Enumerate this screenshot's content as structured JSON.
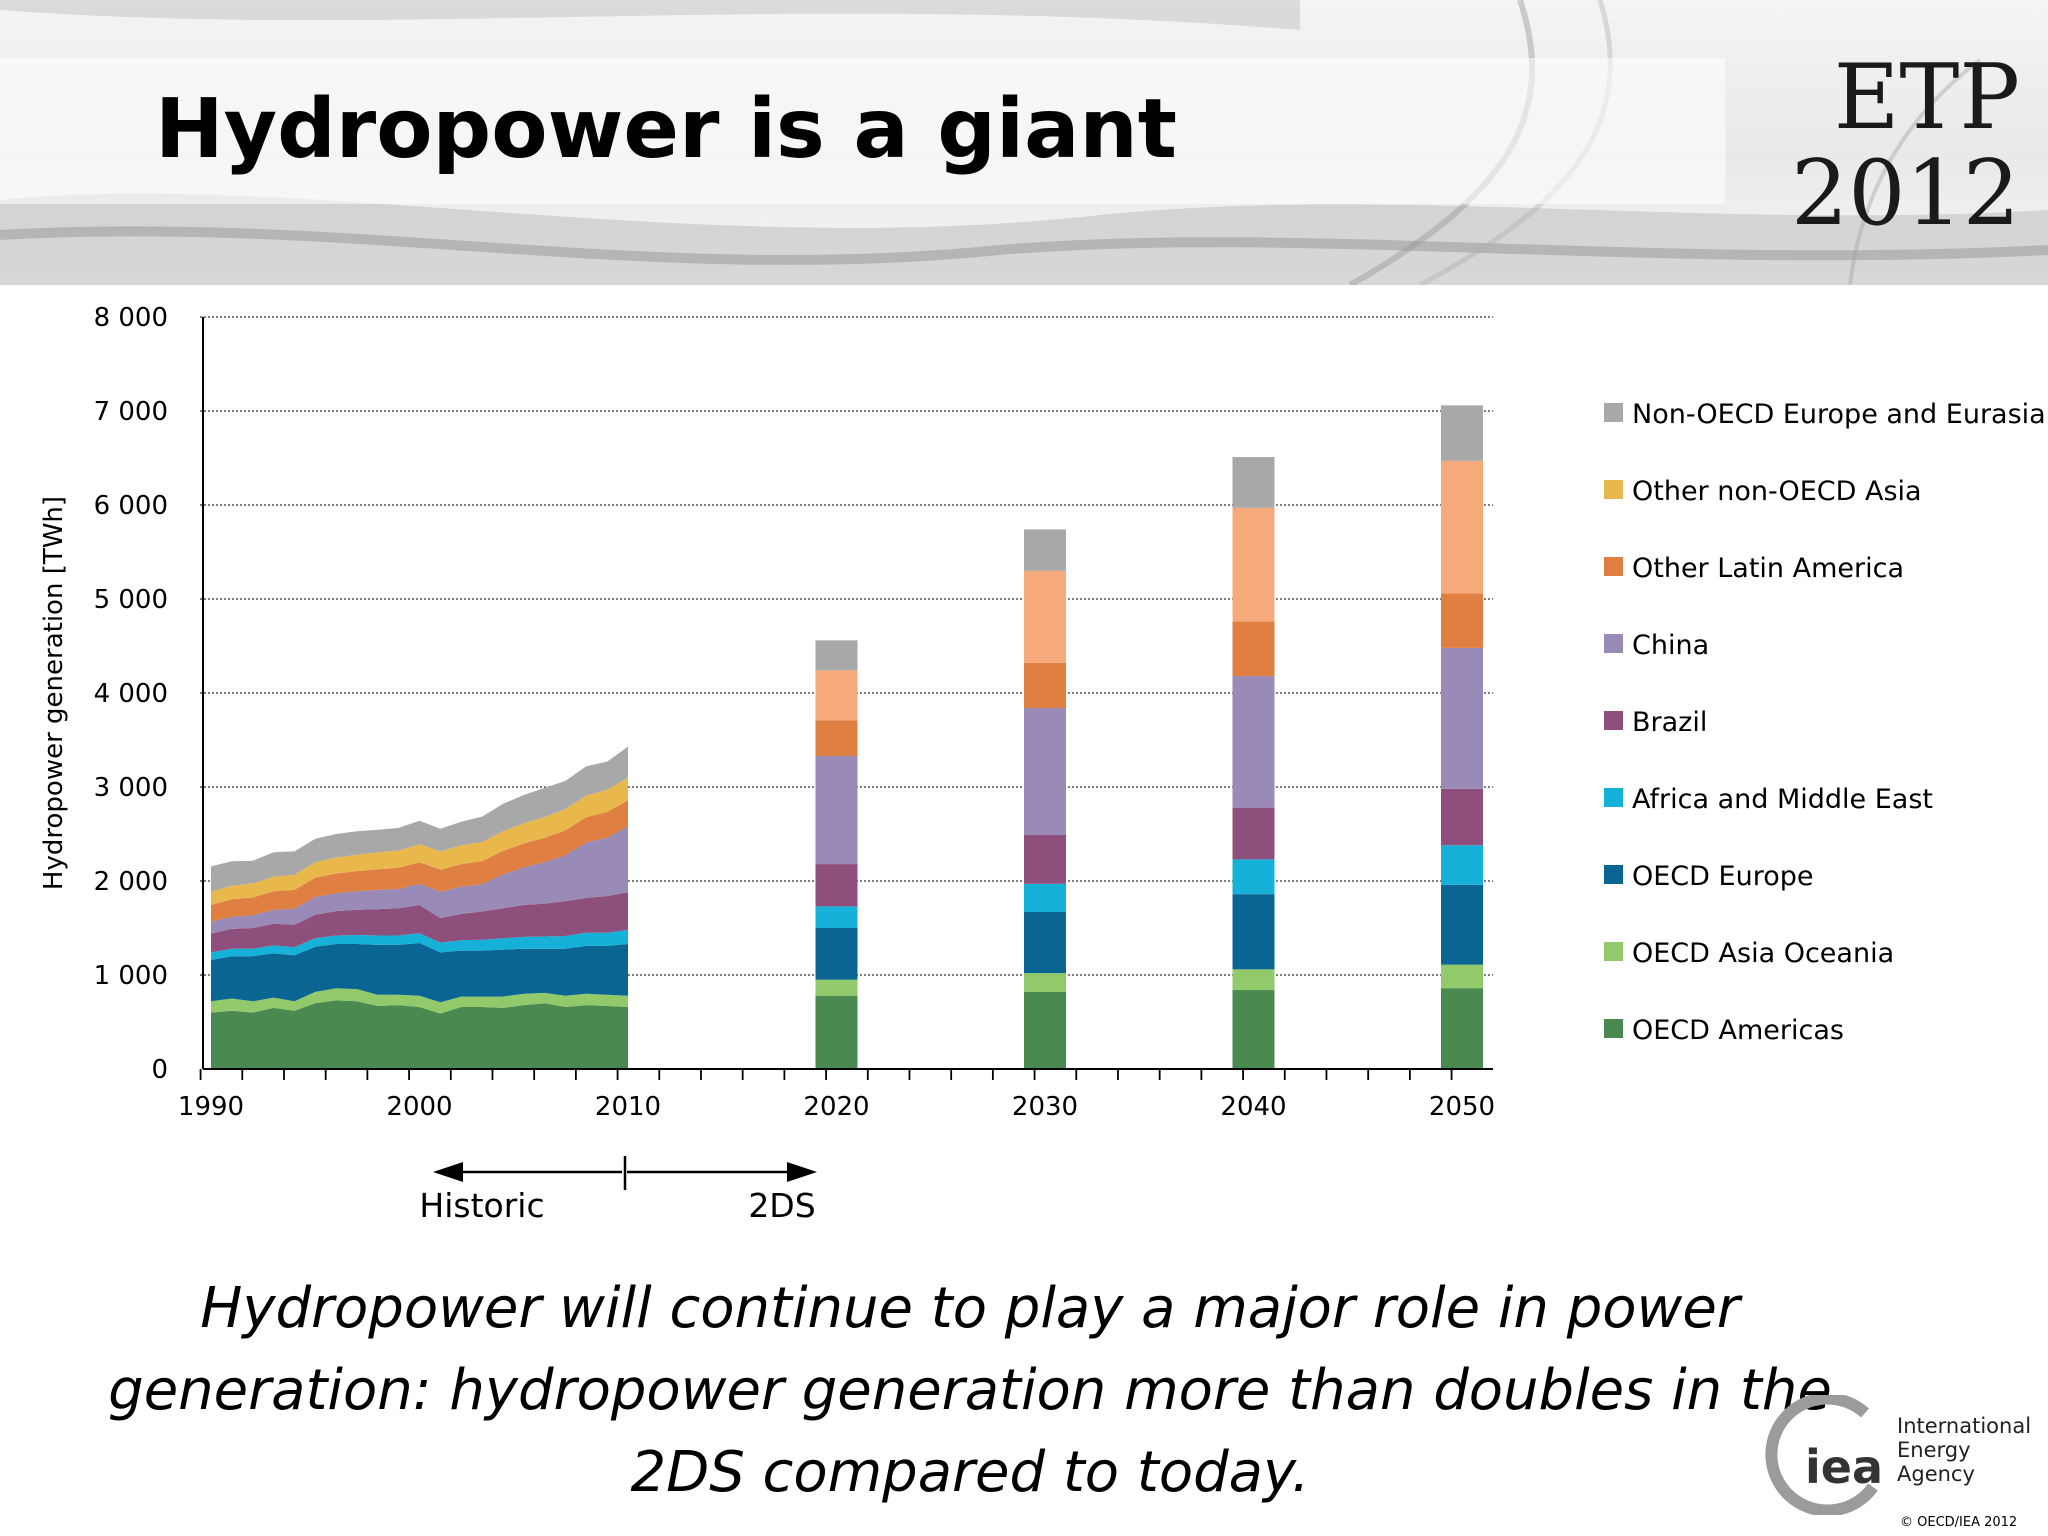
{
  "slide": {
    "title": "Hydropower is a giant",
    "logo_line1": "ETP",
    "logo_line2": "2012",
    "caption": "Hydropower will continue to play a major role in power generation: hydropower generation more than doubles in the 2DS compared to today.",
    "iea_logo_lettering": "iea",
    "iea_org_line1": "International",
    "iea_org_line2": "Energy Agency",
    "footer": "© OECD/IEA 2012"
  },
  "chart_data": {
    "type": "area",
    "stacked": true,
    "ylabel": "Hydropower generation [TWh]",
    "ylim": [
      0,
      8000
    ],
    "y_ticks": [
      0,
      1000,
      2000,
      3000,
      4000,
      5000,
      6000,
      7000,
      8000
    ],
    "y_tick_labels": [
      "0",
      "1 000",
      "2 000",
      "3 000",
      "4 000",
      "5 000",
      "6 000",
      "7 000",
      "8 000"
    ],
    "xlim": [
      1990,
      2051
    ],
    "x_ticks": [
      1990,
      2000,
      2010,
      2020,
      2030,
      2040,
      2050
    ],
    "x_tick_labels": [
      "1990",
      "2000",
      "2010",
      "2020",
      "2030",
      "2040",
      "2050"
    ],
    "grid": "horizontal-dotted",
    "legend_position": "right",
    "legend_order": [
      "Non-OECD Europe and Eurasia",
      "Other non-OECD Asia",
      "Other Latin America",
      "China",
      "Brazil",
      "Africa and Middle East",
      "OECD Europe",
      "OECD Asia Oceania",
      "OECD Americas"
    ],
    "annotations": {
      "historic": "Historic",
      "scenario": "2DS",
      "divider_year": 2010
    },
    "historic_years": [
      1990,
      1991,
      1992,
      1993,
      1994,
      1995,
      1996,
      1997,
      1998,
      1999,
      2000,
      2001,
      2002,
      2003,
      2004,
      2005,
      2006,
      2007,
      2008,
      2009,
      2010
    ],
    "projection_years": [
      2020,
      2030,
      2040,
      2050
    ],
    "series": [
      {
        "name": "OECD Americas",
        "color": "#4a8a50",
        "historic": [
          600,
          620,
          600,
          650,
          620,
          700,
          730,
          720,
          670,
          680,
          660,
          590,
          660,
          660,
          650,
          680,
          700,
          660,
          680,
          670,
          660
        ],
        "projection": [
          780,
          820,
          840,
          860
        ]
      },
      {
        "name": "OECD Asia Oceania",
        "color": "#92c96b",
        "historic": [
          120,
          130,
          120,
          110,
          100,
          120,
          130,
          130,
          120,
          110,
          120,
          120,
          110,
          110,
          120,
          120,
          110,
          120,
          120,
          120,
          120
        ],
        "projection": [
          170,
          200,
          220,
          250
        ]
      },
      {
        "name": "OECD Europe",
        "color": "#0a6592",
        "historic": [
          440,
          450,
          480,
          470,
          490,
          480,
          470,
          480,
          530,
          530,
          560,
          530,
          490,
          490,
          500,
          480,
          470,
          500,
          510,
          520,
          550
        ],
        "projection": [
          550,
          650,
          800,
          850
        ]
      },
      {
        "name": "Africa and Middle East",
        "color": "#16b1d8",
        "historic": [
          80,
          80,
          80,
          85,
          85,
          90,
          90,
          95,
          100,
          100,
          105,
          105,
          110,
          115,
          120,
          125,
          130,
          135,
          140,
          140,
          150
        ],
        "projection": [
          230,
          300,
          370,
          420
        ]
      },
      {
        "name": "Brazil",
        "color": "#8f4f7c",
        "historic": [
          200,
          210,
          220,
          230,
          240,
          250,
          260,
          270,
          280,
          290,
          300,
          260,
          280,
          300,
          320,
          340,
          350,
          370,
          370,
          390,
          400
        ],
        "projection": [
          450,
          520,
          550,
          600
        ]
      },
      {
        "name": "China",
        "color": "#998ab8",
        "historic": [
          125,
          130,
          135,
          150,
          170,
          190,
          190,
          195,
          205,
          205,
          225,
          280,
          290,
          290,
          360,
          400,
          440,
          490,
          590,
          620,
          700
        ],
        "projection": [
          1150,
          1350,
          1400,
          1500
        ]
      },
      {
        "name": "Other Latin America",
        "color": "#df8042",
        "historic": [
          180,
          185,
          190,
          195,
          200,
          205,
          210,
          215,
          220,
          225,
          230,
          235,
          240,
          245,
          250,
          255,
          260,
          265,
          270,
          275,
          280
        ],
        "projection": [
          380,
          480,
          580,
          580
        ]
      },
      {
        "name": "Other non-OECD Asia",
        "color": "#e8b84c",
        "historic": [
          140,
          145,
          150,
          155,
          160,
          165,
          170,
          175,
          180,
          185,
          190,
          195,
          200,
          205,
          210,
          215,
          220,
          225,
          230,
          235,
          240
        ],
        "projection": [
          0,
          0,
          0,
          0
        ]
      },
      {
        "name": "Non-OECD Europe and Eurasia",
        "color": "#a8a8a8",
        "historic": [
          270,
          260,
          240,
          260,
          250,
          250,
          250,
          250,
          240,
          240,
          250,
          240,
          250,
          270,
          290,
          300,
          310,
          300,
          310,
          300,
          330
        ],
        "projection": [
          0,
          0,
          0,
          0
        ]
      },
      {
        "name": "",
        "color": "#f6a97b",
        "historic": [],
        "projection": [
          530,
          980,
          1210,
          1410
        ]
      },
      {
        "name": "",
        "color": "#a8a8a8",
        "historic": [],
        "projection": [
          320,
          440,
          540,
          590
        ]
      }
    ]
  }
}
